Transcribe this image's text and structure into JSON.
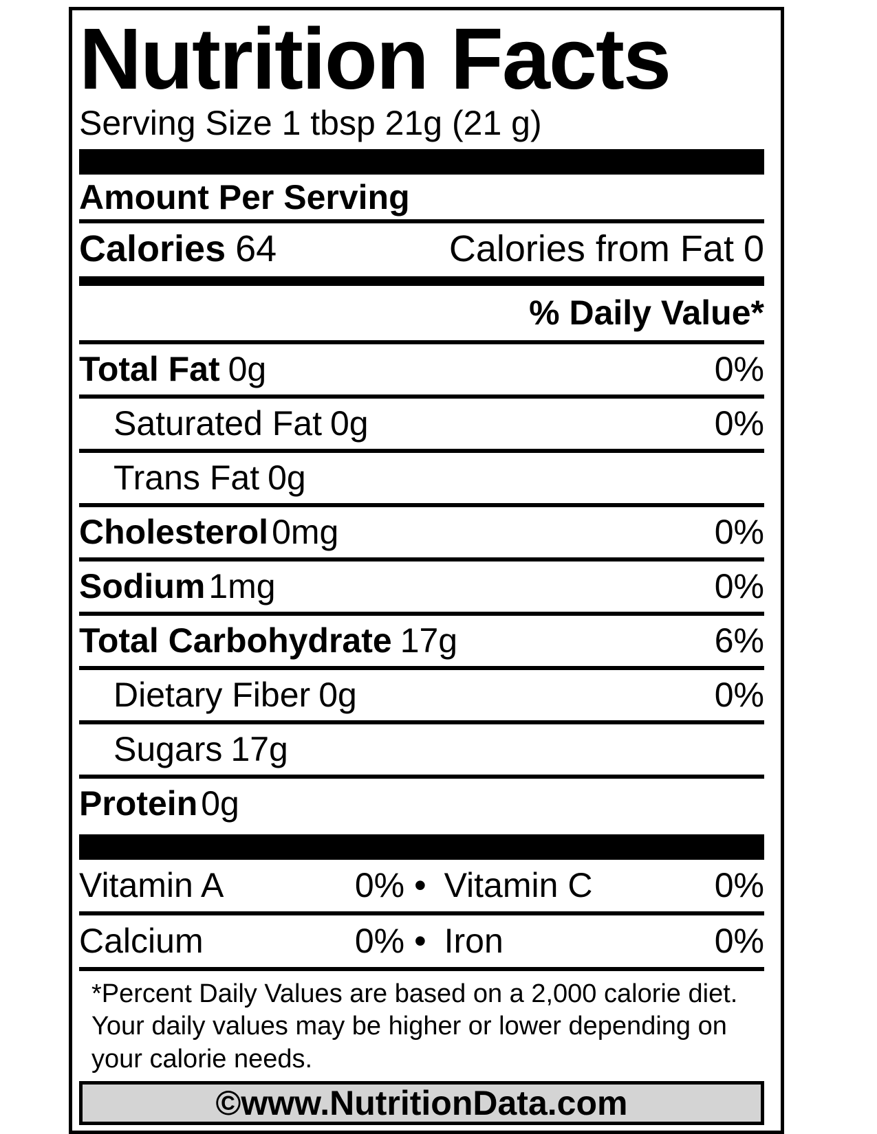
{
  "label": {
    "title": "Nutrition Facts",
    "serving_size": "Serving Size 1 tbsp 21g (21 g)",
    "amount_per_serving": "Amount Per Serving",
    "calories": {
      "label": "Calories",
      "value": "64",
      "from_fat_label": "Calories from Fat",
      "from_fat_value": "0"
    },
    "daily_value_header": "% Daily Value*",
    "nutrients": [
      {
        "label": "Total Fat",
        "value": "0g",
        "dv": "0%"
      },
      {
        "label": "Saturated Fat",
        "value": "0g",
        "dv": "0%"
      },
      {
        "label": "Trans Fat",
        "value": "0g",
        "dv": ""
      },
      {
        "label": "Cholesterol",
        "value": "0mg",
        "dv": "0%"
      },
      {
        "label": "Sodium",
        "value": "1mg",
        "dv": "0%"
      },
      {
        "label": "Total Carbohydrate",
        "value": "17g",
        "dv": "6%"
      },
      {
        "label": "Dietary Fiber",
        "value": "0g",
        "dv": "0%"
      },
      {
        "label": "Sugars",
        "value": "17g",
        "dv": ""
      },
      {
        "label": "Protein",
        "value": "0g",
        "dv": ""
      }
    ],
    "separator": "•",
    "vitamins": [
      {
        "left_label": "Vitamin A",
        "left_value": "0%",
        "right_label": "Vitamin C",
        "right_value": "0%"
      },
      {
        "left_label": "Calcium",
        "left_value": "0%",
        "right_label": "Iron",
        "right_value": "0%"
      }
    ],
    "footnote_lines": [
      "*Percent Daily Values are based on a 2,000 calorie diet.",
      "Your daily values may be higher or lower depending on",
      "your calorie needs."
    ],
    "copyright": "©www.NutritionData.com",
    "colors": {
      "ink": "#000000",
      "background": "#ffffff",
      "copyright_bar_fill": "#d4d4d4"
    }
  }
}
